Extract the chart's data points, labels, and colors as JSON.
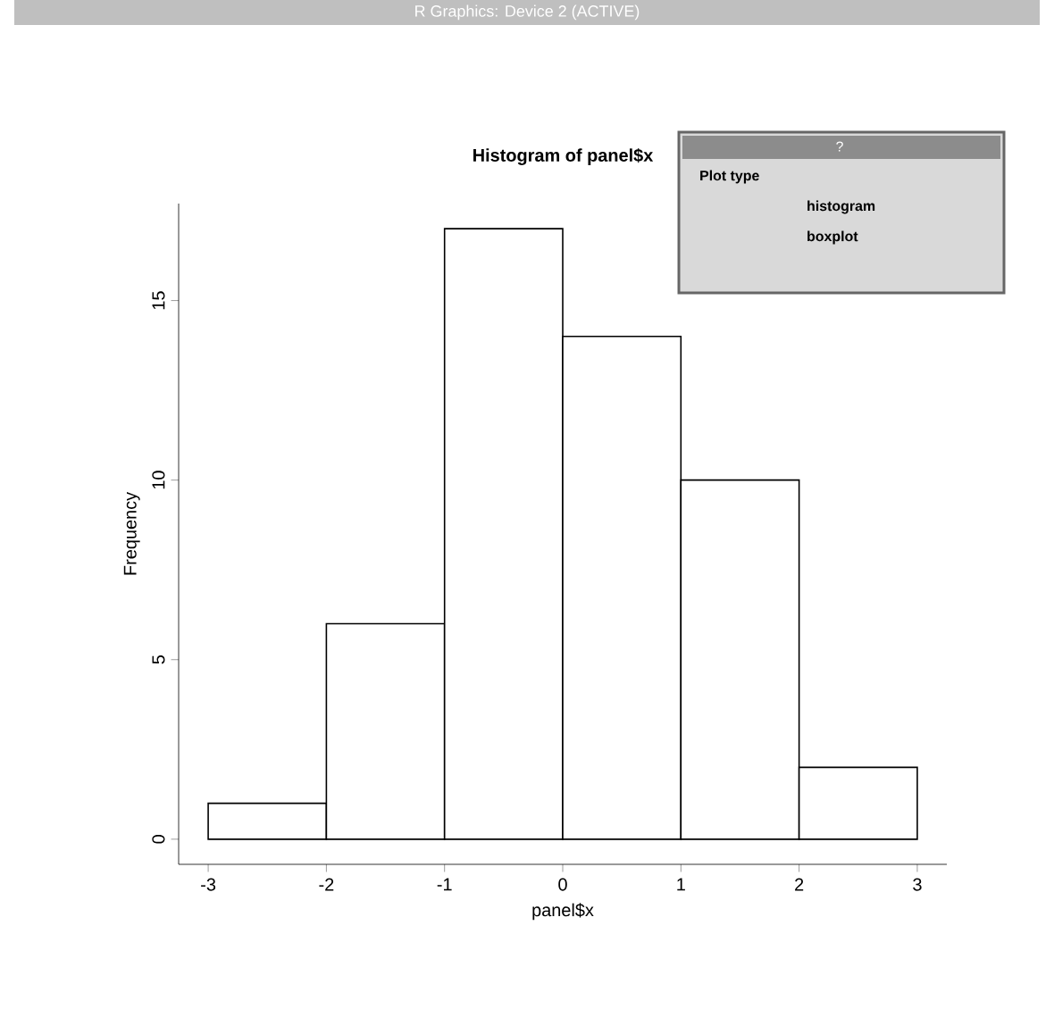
{
  "chart_data": {
    "type": "histogram",
    "title": "Histogram of panel$x",
    "xlabel": "panel$x",
    "ylabel": "Frequency",
    "bins": [
      -3,
      -2,
      -1,
      0,
      1,
      2,
      3
    ],
    "values": [
      1,
      6,
      17,
      14,
      10,
      2
    ],
    "color": "#ffffff",
    "xlim": [
      -3.25,
      3.25
    ],
    "ylim": [
      -0.7,
      17.7
    ],
    "xticks": [
      -3,
      -2,
      -1,
      0,
      1,
      2,
      3
    ],
    "yticks": [
      0,
      5,
      10,
      15
    ],
    "annotations": [
      "R Graphics: Device 2 (ACTIVE)",
      "?",
      "Plot type",
      "histogram",
      "boxplot"
    ]
  }
}
